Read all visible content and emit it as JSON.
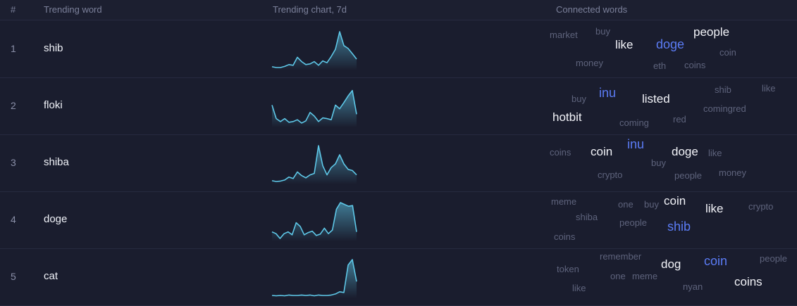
{
  "header": {
    "index_label": "#",
    "word_label": "Trending word",
    "chart_label": "Trending chart, 7d",
    "connected_label": "Connected words"
  },
  "colors": {
    "background": "#1a1d2e",
    "sparkline": "#5ec8e8",
    "accent_word": "#5b7cf5",
    "bright_word": "#f2f3f8",
    "muted_word": "#5e637c"
  },
  "rows": [
    {
      "index": "1",
      "word": "shib",
      "trend": [
        0.04,
        0.02,
        0.02,
        0.05,
        0.1,
        0.08,
        0.3,
        0.18,
        0.1,
        0.12,
        0.18,
        0.08,
        0.2,
        0.15,
        0.32,
        0.52,
        1.0,
        0.62,
        0.54,
        0.4,
        0.25
      ],
      "connected": [
        {
          "text": "market",
          "tone": "muted"
        },
        {
          "text": "buy",
          "tone": "muted"
        },
        {
          "text": "like",
          "tone": "bright"
        },
        {
          "text": "doge",
          "tone": "accent"
        },
        {
          "text": "people",
          "tone": "bright"
        },
        {
          "text": "coin",
          "tone": "muted"
        },
        {
          "text": "money",
          "tone": "muted"
        },
        {
          "text": "eth",
          "tone": "muted"
        },
        {
          "text": "coins",
          "tone": "muted"
        }
      ]
    },
    {
      "index": "2",
      "word": "floki",
      "trend": [
        0.55,
        0.18,
        0.1,
        0.18,
        0.08,
        0.1,
        0.15,
        0.06,
        0.12,
        0.35,
        0.25,
        0.1,
        0.2,
        0.18,
        0.15,
        0.55,
        0.45,
        0.62,
        0.8,
        0.95,
        0.3
      ],
      "connected": [
        {
          "text": "buy",
          "tone": "muted"
        },
        {
          "text": "inu",
          "tone": "accent"
        },
        {
          "text": "listed",
          "tone": "bright"
        },
        {
          "text": "shib",
          "tone": "muted"
        },
        {
          "text": "like",
          "tone": "muted"
        },
        {
          "text": "hotbit",
          "tone": "bright"
        },
        {
          "text": "coming",
          "tone": "muted"
        },
        {
          "text": "red",
          "tone": "muted"
        },
        {
          "text": "comingred",
          "tone": "muted"
        }
      ]
    },
    {
      "index": "3",
      "word": "shiba",
      "trend": [
        0.04,
        0.02,
        0.03,
        0.06,
        0.14,
        0.1,
        0.28,
        0.18,
        0.12,
        0.2,
        0.24,
        1.0,
        0.45,
        0.2,
        0.4,
        0.5,
        0.75,
        0.5,
        0.35,
        0.32,
        0.2
      ],
      "connected": [
        {
          "text": "coins",
          "tone": "muted"
        },
        {
          "text": "coin",
          "tone": "bright"
        },
        {
          "text": "inu",
          "tone": "accent"
        },
        {
          "text": "doge",
          "tone": "bright"
        },
        {
          "text": "like",
          "tone": "muted"
        },
        {
          "text": "buy",
          "tone": "muted"
        },
        {
          "text": "crypto",
          "tone": "muted"
        },
        {
          "text": "people",
          "tone": "muted"
        },
        {
          "text": "money",
          "tone": "muted"
        }
      ]
    },
    {
      "index": "4",
      "word": "doge",
      "trend": [
        0.2,
        0.15,
        0.02,
        0.15,
        0.2,
        0.12,
        0.45,
        0.35,
        0.12,
        0.18,
        0.22,
        0.1,
        0.14,
        0.3,
        0.15,
        0.25,
        0.82,
        1.0,
        0.95,
        0.9,
        0.92,
        0.2
      ],
      "connected": [
        {
          "text": "meme",
          "tone": "muted"
        },
        {
          "text": "one",
          "tone": "muted"
        },
        {
          "text": "buy",
          "tone": "muted"
        },
        {
          "text": "coin",
          "tone": "bright"
        },
        {
          "text": "like",
          "tone": "bright"
        },
        {
          "text": "crypto",
          "tone": "muted"
        },
        {
          "text": "shiba",
          "tone": "muted"
        },
        {
          "text": "people",
          "tone": "muted"
        },
        {
          "text": "shib",
          "tone": "accent"
        },
        {
          "text": "coins",
          "tone": "muted"
        }
      ]
    },
    {
      "index": "5",
      "word": "cat",
      "trend": [
        0.02,
        0.01,
        0.02,
        0.01,
        0.03,
        0.02,
        0.02,
        0.03,
        0.02,
        0.03,
        0.01,
        0.03,
        0.02,
        0.02,
        0.03,
        0.06,
        0.12,
        0.1,
        0.85,
        1.0,
        0.4
      ],
      "connected": [
        {
          "text": "remember",
          "tone": "muted"
        },
        {
          "text": "people",
          "tone": "muted"
        },
        {
          "text": "token",
          "tone": "muted"
        },
        {
          "text": "dog",
          "tone": "bright"
        },
        {
          "text": "coin",
          "tone": "accent"
        },
        {
          "text": "one",
          "tone": "muted"
        },
        {
          "text": "meme",
          "tone": "muted"
        },
        {
          "text": "coins",
          "tone": "bright"
        },
        {
          "text": "like",
          "tone": "muted"
        },
        {
          "text": "nyan",
          "tone": "muted"
        }
      ]
    }
  ]
}
